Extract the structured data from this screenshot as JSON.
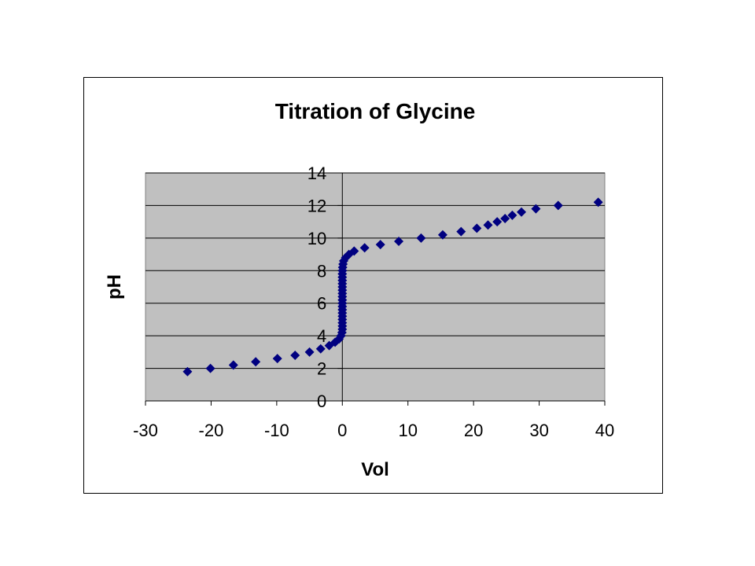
{
  "chart_data": {
    "type": "scatter",
    "title": "Titration of Glycine",
    "xlabel": "Vol",
    "ylabel": "pH",
    "xlim": [
      -30,
      40
    ],
    "ylim": [
      0,
      14
    ],
    "x_ticks": [
      -30,
      -20,
      -10,
      0,
      10,
      20,
      30,
      40
    ],
    "y_ticks": [
      0,
      2,
      4,
      6,
      8,
      10,
      12,
      14
    ],
    "grid": "horizontal",
    "legend": "none",
    "colors": {
      "marker": "#000080",
      "plot_background": "#c0c0c0",
      "gridline": "#000000"
    },
    "series": [
      {
        "points": [
          [
            -23.6,
            1.8
          ],
          [
            -20.1,
            2.0
          ],
          [
            -16.6,
            2.2
          ],
          [
            -13.2,
            2.4
          ],
          [
            -9.9,
            2.6
          ],
          [
            -7.2,
            2.8
          ],
          [
            -5.0,
            3.0
          ],
          [
            -3.3,
            3.2
          ],
          [
            -2.0,
            3.4
          ],
          [
            -1.1,
            3.6
          ],
          [
            -0.5,
            3.8
          ],
          [
            -0.2,
            4.0
          ],
          [
            -0.05,
            4.2
          ],
          [
            0.0,
            4.4
          ],
          [
            0.0,
            4.6
          ],
          [
            0.0,
            4.8
          ],
          [
            0.0,
            5.0
          ],
          [
            0.0,
            5.2
          ],
          [
            0.0,
            5.4
          ],
          [
            0.0,
            5.6
          ],
          [
            0.0,
            5.8
          ],
          [
            0.0,
            6.0
          ],
          [
            0.0,
            6.2
          ],
          [
            0.0,
            6.4
          ],
          [
            0.0,
            6.6
          ],
          [
            0.0,
            6.8
          ],
          [
            0.0,
            7.0
          ],
          [
            0.0,
            7.2
          ],
          [
            0.0,
            7.4
          ],
          [
            0.0,
            7.6
          ],
          [
            0.0,
            7.8
          ],
          [
            0.02,
            8.0
          ],
          [
            0.05,
            8.2
          ],
          [
            0.1,
            8.4
          ],
          [
            0.2,
            8.6
          ],
          [
            0.5,
            8.8
          ],
          [
            1.0,
            9.0
          ],
          [
            1.8,
            9.2
          ],
          [
            3.4,
            9.4
          ],
          [
            5.8,
            9.6
          ],
          [
            8.6,
            9.8
          ],
          [
            12.0,
            10.0
          ],
          [
            15.3,
            10.2
          ],
          [
            18.1,
            10.4
          ],
          [
            20.5,
            10.6
          ],
          [
            22.2,
            10.8
          ],
          [
            23.6,
            11.0
          ],
          [
            24.8,
            11.2
          ],
          [
            25.9,
            11.4
          ],
          [
            27.3,
            11.6
          ],
          [
            29.5,
            11.8
          ],
          [
            32.9,
            12.0
          ],
          [
            39.0,
            12.2
          ]
        ]
      }
    ]
  }
}
